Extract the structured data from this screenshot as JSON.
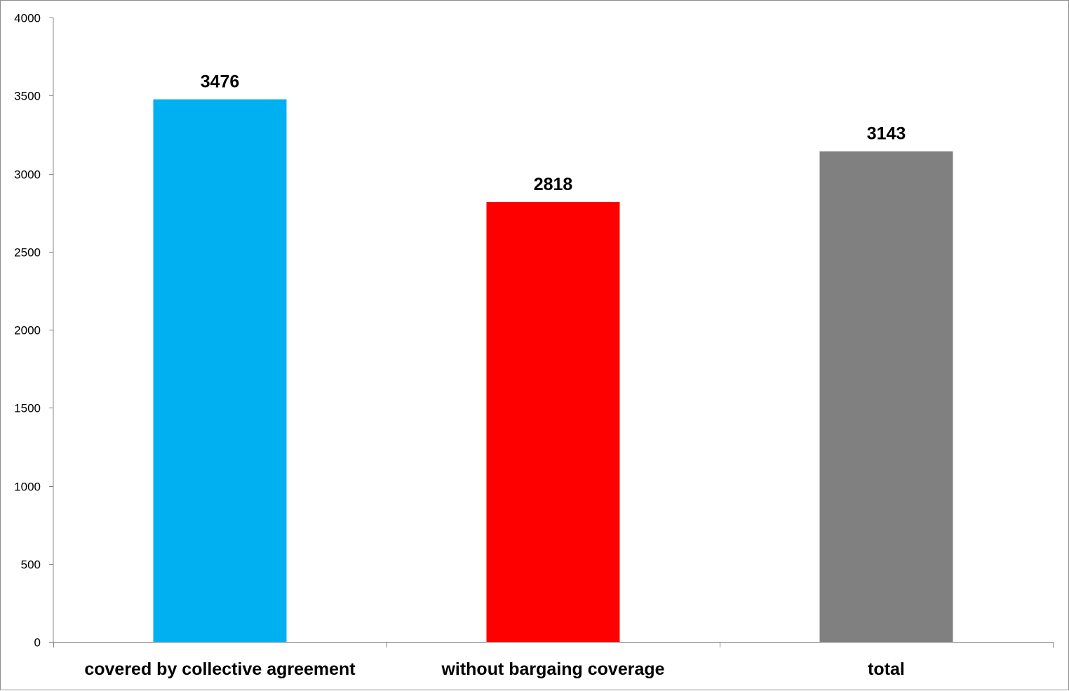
{
  "chart_data": {
    "type": "bar",
    "categories": [
      "covered by collective agreement",
      "without bargaing coverage",
      "total"
    ],
    "values": [
      3476,
      2818,
      3143
    ],
    "data_labels": [
      "3476",
      "2818",
      "3143"
    ],
    "colors": [
      "#00b0f0",
      "#ff0000",
      "#808080"
    ],
    "ylim": [
      0,
      4000
    ],
    "yticks": [
      0,
      500,
      1000,
      1500,
      2000,
      2500,
      3000,
      3500,
      4000
    ],
    "ytick_labels": [
      "0",
      "500",
      "1000",
      "1500",
      "2000",
      "2500",
      "3000",
      "3500",
      "4000"
    ],
    "grid": false,
    "legend": "none"
  }
}
